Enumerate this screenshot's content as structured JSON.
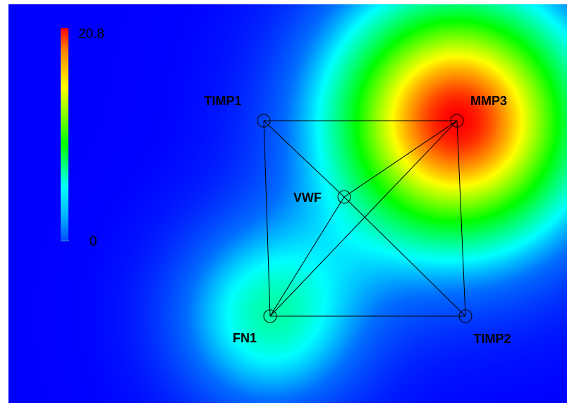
{
  "scale": {
    "max_label": "20.8",
    "min_label": "0"
  },
  "nodes": [
    {
      "id": "TIMP1",
      "label": "TIMP1",
      "intensity": 0.0
    },
    {
      "id": "MMP3",
      "label": "MMP3",
      "intensity": 20.8
    },
    {
      "id": "VWF",
      "label": "VWF",
      "intensity": 0.0
    },
    {
      "id": "FN1",
      "label": "FN1",
      "intensity": 8.0
    },
    {
      "id": "TIMP2",
      "label": "TIMP2",
      "intensity": 0.0
    }
  ],
  "edges": [
    [
      "TIMP1",
      "MMP3"
    ],
    [
      "TIMP1",
      "VWF"
    ],
    [
      "TIMP1",
      "FN1"
    ],
    [
      "VWF",
      "TIMP2"
    ],
    [
      "VWF",
      "MMP3"
    ],
    [
      "VWF",
      "FN1"
    ],
    [
      "MMP3",
      "FN1"
    ],
    [
      "MMP3",
      "TIMP2"
    ],
    [
      "FN1",
      "TIMP2"
    ]
  ],
  "colors": {
    "background": "#0000ff",
    "hot": "#ff0000",
    "node_fill": "#ffffff"
  }
}
